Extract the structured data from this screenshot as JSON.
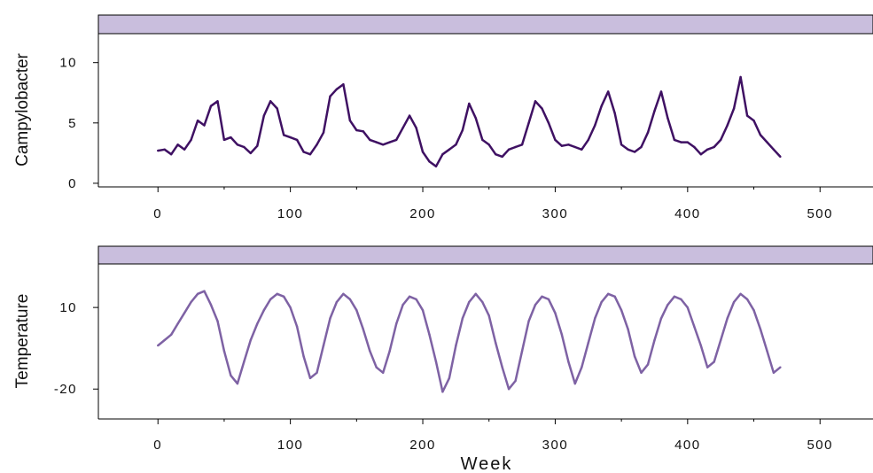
{
  "chart_data": [
    {
      "type": "line",
      "ylabel": "Campylobacter",
      "xlabel": "",
      "xlim": [
        -45,
        540
      ],
      "ylim": [
        -0.3,
        12.4
      ],
      "xticks": [
        "0",
        "100",
        "200",
        "300",
        "400",
        "500"
      ],
      "yticks": [
        "0",
        "5",
        "10"
      ],
      "strip_color": "#c9bedd",
      "line_color": "#3f1163",
      "x": [
        0,
        5,
        10,
        15,
        20,
        25,
        30,
        35,
        40,
        45,
        50,
        55,
        60,
        65,
        70,
        75,
        80,
        85,
        90,
        95,
        100,
        105,
        110,
        115,
        120,
        125,
        130,
        135,
        140,
        145,
        150,
        155,
        160,
        165,
        170,
        175,
        180,
        185,
        190,
        195,
        200,
        205,
        210,
        215,
        220,
        225,
        230,
        235,
        240,
        245,
        250,
        255,
        260,
        265,
        270,
        275,
        280,
        285,
        290,
        295,
        300,
        305,
        310,
        315,
        320,
        325,
        330,
        335,
        340,
        345,
        350,
        355,
        360,
        365,
        370,
        375,
        380,
        385,
        390,
        395,
        400,
        405,
        410,
        415,
        420,
        425,
        430,
        435,
        440,
        445,
        450,
        455,
        460,
        465,
        470
      ],
      "series": [
        {
          "values": [
            2.7,
            2.8,
            2.4,
            3.2,
            2.8,
            3.6,
            5.2,
            4.8,
            6.4,
            6.8,
            3.6,
            3.8,
            3.2,
            3.0,
            2.5,
            3.1,
            5.6,
            6.8,
            6.2,
            4.0,
            3.8,
            3.6,
            2.6,
            2.4,
            3.2,
            4.2,
            7.2,
            7.8,
            8.2,
            5.2,
            4.4,
            4.3,
            3.6,
            3.4,
            3.2,
            3.4,
            3.6,
            4.6,
            5.6,
            4.6,
            2.6,
            1.8,
            1.4,
            2.4,
            2.8,
            3.2,
            4.4,
            6.6,
            5.4,
            3.6,
            3.2,
            2.4,
            2.2,
            2.8,
            3.0,
            3.2,
            5.0,
            6.8,
            6.2,
            5.0,
            3.6,
            3.1,
            3.2,
            3.0,
            2.8,
            3.6,
            4.8,
            6.4,
            7.6,
            5.8,
            3.2,
            2.8,
            2.6,
            3.0,
            4.2,
            6.0,
            7.6,
            5.4,
            3.6,
            3.4,
            3.4,
            3.0,
            2.4,
            2.8,
            3.0,
            3.6,
            4.8,
            6.2,
            8.8,
            5.6,
            5.2,
            4.0,
            3.4,
            2.8,
            2.2
          ]
        }
      ]
    },
    {
      "type": "line",
      "ylabel": "Temperature",
      "xlabel": "Week",
      "xlim": [
        -45,
        540
      ],
      "ylim": [
        -31,
        26
      ],
      "xticks": [
        "0",
        "100",
        "200",
        "300",
        "400",
        "500"
      ],
      "yticks": [
        "-20",
        "10"
      ],
      "strip_color": "#c9bedd",
      "line_color": "#7e62a4",
      "x": [
        0,
        5,
        10,
        15,
        20,
        25,
        30,
        35,
        40,
        45,
        50,
        55,
        60,
        65,
        70,
        75,
        80,
        85,
        90,
        95,
        100,
        105,
        110,
        115,
        120,
        125,
        130,
        135,
        140,
        145,
        150,
        155,
        160,
        165,
        170,
        175,
        180,
        185,
        190,
        195,
        200,
        205,
        210,
        215,
        220,
        225,
        230,
        235,
        240,
        245,
        250,
        255,
        260,
        265,
        270,
        275,
        280,
        285,
        290,
        295,
        300,
        305,
        310,
        315,
        320,
        325,
        330,
        335,
        340,
        345,
        350,
        355,
        360,
        365,
        370,
        375,
        380,
        385,
        390,
        395,
        400,
        405,
        410,
        415,
        420,
        425,
        430,
        435,
        440,
        445,
        450,
        455,
        460,
        465,
        470
      ],
      "series": [
        {
          "values": [
            -4,
            -2,
            0,
            4,
            8,
            12,
            15,
            16,
            11,
            5,
            -6,
            -15,
            -18,
            -10,
            -2,
            4,
            9,
            13,
            15,
            14,
            10,
            3,
            -8,
            -16,
            -14,
            -4,
            6,
            12,
            15,
            13,
            9,
            2,
            -6,
            -12,
            -14,
            -6,
            4,
            11,
            14,
            13,
            9,
            0,
            -10,
            -21,
            -16,
            -4,
            6,
            12,
            15,
            12,
            7,
            -3,
            -12,
            -20,
            -17,
            -6,
            5,
            11,
            14,
            13,
            8,
            0,
            -10,
            -18,
            -12,
            -3,
            6,
            12,
            15,
            14,
            9,
            2,
            -8,
            -14,
            -11,
            -2,
            6,
            11,
            14,
            13,
            10,
            3,
            -4,
            -12,
            -10,
            -2,
            6,
            12,
            15,
            13,
            9,
            2,
            -6,
            -14,
            -12
          ]
        }
      ]
    }
  ]
}
